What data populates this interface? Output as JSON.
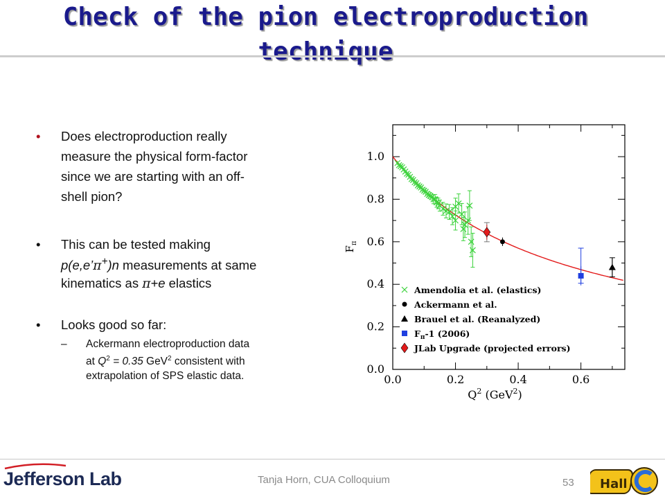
{
  "title": {
    "line1": "Check of the pion electroproduction",
    "line2": "technique"
  },
  "bullets": {
    "b1": {
      "marker": "•",
      "lines": [
        "Does electroproduction really",
        "measure the physical form-factor",
        "since we are starting with an off-",
        "shell pion?"
      ]
    },
    "b2": {
      "marker": "•",
      "l1_pre": "This can be tested making",
      "l2_a": "p(e,e’",
      "l2_pi": "π",
      "l2_sup": "+",
      "l2_b": ")n",
      "l2_c": " measurements at same",
      "l3_a": "kinematics as ",
      "l3_pi": "π",
      "l3_b": "+e",
      "l3_c": " elastics"
    },
    "b3": {
      "marker": "•",
      "text": "Looks good so far:"
    },
    "sub": {
      "marker": "–",
      "l1": "Ackermann electroproduction data",
      "l2_a": "at ",
      "l2_q": "Q",
      "l2_qsup": "2",
      "l2_eq": " = 0.35",
      "l2_gev": " GeV",
      "l2_gsup": "2",
      "l2_c": " consistent with",
      "l3": "extrapolation of SPS elastic data."
    }
  },
  "footer": {
    "logo": "Jefferson Lab",
    "center": "Tanja Horn, CUA Colloquium",
    "page": "53",
    "hallc_text": "Hall C"
  },
  "colors": {
    "title": "#1a1a8c",
    "bullet_red": "#b1121e",
    "green": "#3ad23a",
    "red_curve": "#e31a1a",
    "blue": "#1f3fe0",
    "black": "#000000"
  },
  "chart_data": {
    "type": "scatter",
    "xlim": [
      0.0,
      0.74
    ],
    "ylim": [
      0.0,
      1.15
    ],
    "xlabel": "Q",
    "xlabel_sup": "2",
    "xlabel_unit": "(GeV",
    "xlabel_unit_sup": "2",
    "xlabel_close": ")",
    "ylabel": "F",
    "ylabel_sub": "π",
    "xticks": [
      0.0,
      0.2,
      0.4,
      0.6
    ],
    "xtick_labels": [
      "0.0",
      "0.2",
      "0.4",
      "0.6"
    ],
    "yticks": [
      0.0,
      0.2,
      0.4,
      0.6,
      0.8,
      1.0
    ],
    "ytick_labels": [
      "0.0",
      "0.2",
      "0.4",
      "0.6",
      "0.8",
      "1.0"
    ],
    "curve": {
      "type": "monopole",
      "m2": 0.53
    },
    "series": [
      {
        "name": "Amendolia et al. (elastics)",
        "marker": "x",
        "color": "#3ad23a",
        "points": [
          [
            0.015,
            0.97,
            0.01
          ],
          [
            0.02,
            0.96,
            0.01
          ],
          [
            0.025,
            0.955,
            0.01
          ],
          [
            0.03,
            0.95,
            0.01
          ],
          [
            0.035,
            0.94,
            0.01
          ],
          [
            0.04,
            0.93,
            0.01
          ],
          [
            0.045,
            0.92,
            0.012
          ],
          [
            0.05,
            0.915,
            0.012
          ],
          [
            0.055,
            0.905,
            0.012
          ],
          [
            0.06,
            0.895,
            0.013
          ],
          [
            0.065,
            0.89,
            0.013
          ],
          [
            0.07,
            0.88,
            0.014
          ],
          [
            0.075,
            0.875,
            0.014
          ],
          [
            0.08,
            0.865,
            0.015
          ],
          [
            0.085,
            0.86,
            0.015
          ],
          [
            0.09,
            0.855,
            0.016
          ],
          [
            0.095,
            0.845,
            0.016
          ],
          [
            0.1,
            0.84,
            0.017
          ],
          [
            0.105,
            0.835,
            0.018
          ],
          [
            0.11,
            0.825,
            0.018
          ],
          [
            0.115,
            0.82,
            0.019
          ],
          [
            0.12,
            0.815,
            0.02
          ],
          [
            0.125,
            0.81,
            0.02
          ],
          [
            0.13,
            0.8,
            0.021
          ],
          [
            0.135,
            0.8,
            0.022
          ],
          [
            0.14,
            0.785,
            0.023
          ],
          [
            0.145,
            0.78,
            0.025
          ],
          [
            0.15,
            0.77,
            0.026
          ],
          [
            0.16,
            0.755,
            0.03
          ],
          [
            0.17,
            0.745,
            0.033
          ],
          [
            0.18,
            0.74,
            0.035
          ],
          [
            0.19,
            0.72,
            0.04
          ],
          [
            0.2,
            0.7,
            0.045
          ],
          [
            0.2,
            0.765,
            0.04
          ],
          [
            0.21,
            0.78,
            0.045
          ],
          [
            0.22,
            0.73,
            0.05
          ],
          [
            0.225,
            0.66,
            0.055
          ],
          [
            0.23,
            0.68,
            0.06
          ],
          [
            0.24,
            0.7,
            0.065
          ],
          [
            0.245,
            0.77,
            0.07
          ],
          [
            0.25,
            0.6,
            0.07
          ],
          [
            0.255,
            0.56,
            0.08
          ]
        ]
      },
      {
        "name": "Ackermann et al.",
        "marker": "circle",
        "color": "#000000",
        "points": [
          [
            0.35,
            0.6,
            0.02
          ]
        ]
      },
      {
        "name": "Brauel et al. (Reanalyzed)",
        "marker": "triangle",
        "color": "#000000",
        "points": [
          [
            0.7,
            0.48,
            0.045
          ]
        ]
      },
      {
        "name": "F",
        "name_sub": "π",
        "name_rest": "-1 (2006)",
        "marker": "square",
        "color": "#1f3fe0",
        "points": [
          [
            0.6,
            0.44,
            0.045
          ]
        ]
      },
      {
        "name": "JLab Upgrade (projected errors)",
        "marker": "diamond",
        "color": "#e31a1a",
        "points": [
          [
            0.3,
            0.645,
            0.035
          ]
        ]
      }
    ],
    "extra_errorbars": [
      {
        "x": 0.3,
        "y": 0.645,
        "err": 0.045,
        "color": "#777777"
      },
      {
        "x": 0.6,
        "y": 0.44,
        "err": 0.13,
        "color": "#1f3fe0",
        "asym_up": 0.13,
        "asym_dn": 0.035
      },
      {
        "x": 0.7,
        "y": 0.48,
        "err": 0.045,
        "color": "#000000"
      }
    ],
    "legend_position": "bottom-left"
  }
}
